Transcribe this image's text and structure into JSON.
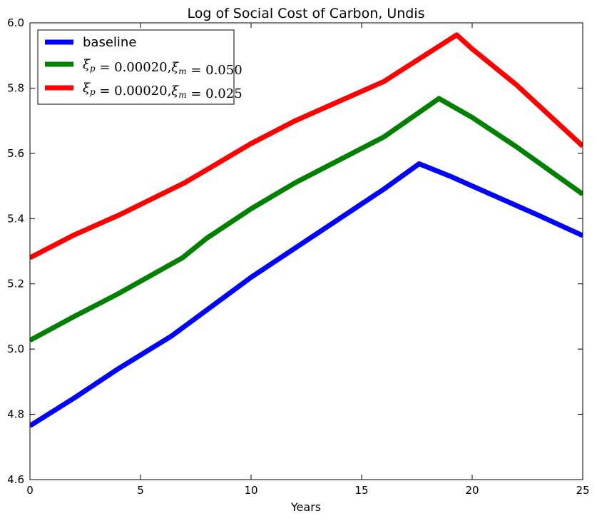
{
  "chart_data": {
    "type": "line",
    "title": "Log of Social Cost of Carbon, Undis",
    "xlabel": "Years",
    "ylabel": "",
    "xlim": [
      0,
      25
    ],
    "ylim": [
      4.6,
      6.0
    ],
    "xticks": [
      0,
      5,
      10,
      15,
      20,
      25
    ],
    "yticks": [
      4.6,
      4.8,
      5.0,
      5.2,
      5.4,
      5.6,
      5.8,
      6.0
    ],
    "xtick_labels": [
      "0",
      "5",
      "10",
      "15",
      "20",
      "25"
    ],
    "ytick_labels": [
      "4.6",
      "4.8",
      "5.0",
      "5.2",
      "5.4",
      "5.6",
      "5.8",
      "6.0"
    ],
    "grid": false,
    "legend_position": "top-left",
    "series": [
      {
        "name": "baseline",
        "color": "#0000ff",
        "x": [
          0,
          2,
          4,
          6.4,
          8,
          10,
          12,
          14,
          16,
          17.6,
          19,
          21,
          23,
          25
        ],
        "y": [
          4.765,
          4.85,
          4.94,
          5.04,
          5.12,
          5.22,
          5.31,
          5.4,
          5.49,
          5.568,
          5.53,
          5.47,
          5.41,
          5.348
        ]
      },
      {
        "name": "ξp=0.00020,ξm=0.050",
        "color": "#008000",
        "x": [
          0,
          2,
          4,
          6.9,
          8,
          10,
          12,
          14,
          16,
          18.5,
          20,
          22,
          25
        ],
        "y": [
          5.027,
          5.1,
          5.17,
          5.28,
          5.34,
          5.43,
          5.51,
          5.58,
          5.65,
          5.768,
          5.71,
          5.62,
          5.475
        ]
      },
      {
        "name": "ξp=0.00020,ξm=0.025",
        "color": "#ff0000",
        "x": [
          0,
          2,
          4,
          7,
          8,
          10,
          12,
          14,
          16,
          19.3,
          20,
          22,
          25
        ],
        "y": [
          5.28,
          5.35,
          5.41,
          5.51,
          5.55,
          5.63,
          5.7,
          5.76,
          5.82,
          5.963,
          5.92,
          5.81,
          5.622
        ]
      }
    ],
    "legend_entries": [
      {
        "main": "baseline",
        "sub": ""
      },
      {
        "main": "ξp=0.00020,ξm=0.050",
        "p": "ξ",
        "p_sub": "p",
        "eq1": " = 0.00020,",
        "m": "ξ",
        "m_sub": "m",
        "eq2": " = 0.050"
      },
      {
        "main": "ξp=0.00020,ξm=0.025",
        "p": "ξ",
        "p_sub": "p",
        "eq1": " = 0.00020,",
        "m": "ξ",
        "m_sub": "m",
        "eq2": " = 0.025"
      }
    ]
  }
}
